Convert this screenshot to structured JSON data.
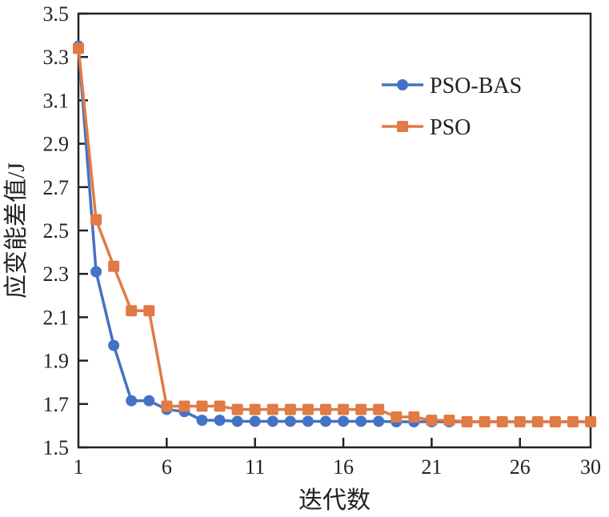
{
  "chart_data": {
    "type": "line",
    "title": "",
    "xlabel": "迭代数",
    "ylabel": "应变能差值/J",
    "xlim": [
      1,
      30
    ],
    "ylim": [
      1.5,
      3.5
    ],
    "xticks": [
      1,
      6,
      11,
      16,
      21,
      26,
      30
    ],
    "yticks": [
      1.5,
      1.7,
      1.9,
      2.1,
      2.3,
      2.5,
      2.7,
      2.9,
      3.1,
      3.3,
      3.5
    ],
    "ytick_labels": [
      "1.5",
      "1.7",
      "1.9",
      "2.1",
      "2.3",
      "2.5",
      "2.7",
      "2.9",
      "3.1",
      "3.3",
      "3.5"
    ],
    "grid": false,
    "legend_position": "top-right",
    "x": [
      1,
      2,
      3,
      4,
      5,
      6,
      7,
      8,
      9,
      10,
      11,
      12,
      13,
      14,
      15,
      16,
      17,
      18,
      19,
      20,
      21,
      22,
      23,
      24,
      25,
      26,
      27,
      28,
      29,
      30
    ],
    "series": [
      {
        "name": "PSO-BAS",
        "color": "#4472C4",
        "marker": "circle",
        "values": [
          3.35,
          2.31,
          1.97,
          1.715,
          1.715,
          1.675,
          1.665,
          1.625,
          1.625,
          1.62,
          1.62,
          1.62,
          1.62,
          1.62,
          1.62,
          1.62,
          1.62,
          1.62,
          1.618,
          1.618,
          1.618,
          1.618,
          1.618,
          1.618,
          1.618,
          1.618,
          1.618,
          1.618,
          1.618,
          1.618
        ]
      },
      {
        "name": "PSO",
        "color": "#E07B45",
        "marker": "square",
        "values": [
          3.34,
          2.55,
          2.335,
          2.13,
          2.13,
          1.69,
          1.69,
          1.69,
          1.69,
          1.675,
          1.675,
          1.675,
          1.675,
          1.675,
          1.675,
          1.675,
          1.675,
          1.675,
          1.64,
          1.64,
          1.625,
          1.625,
          1.618,
          1.618,
          1.618,
          1.618,
          1.618,
          1.618,
          1.618,
          1.618
        ]
      }
    ]
  }
}
